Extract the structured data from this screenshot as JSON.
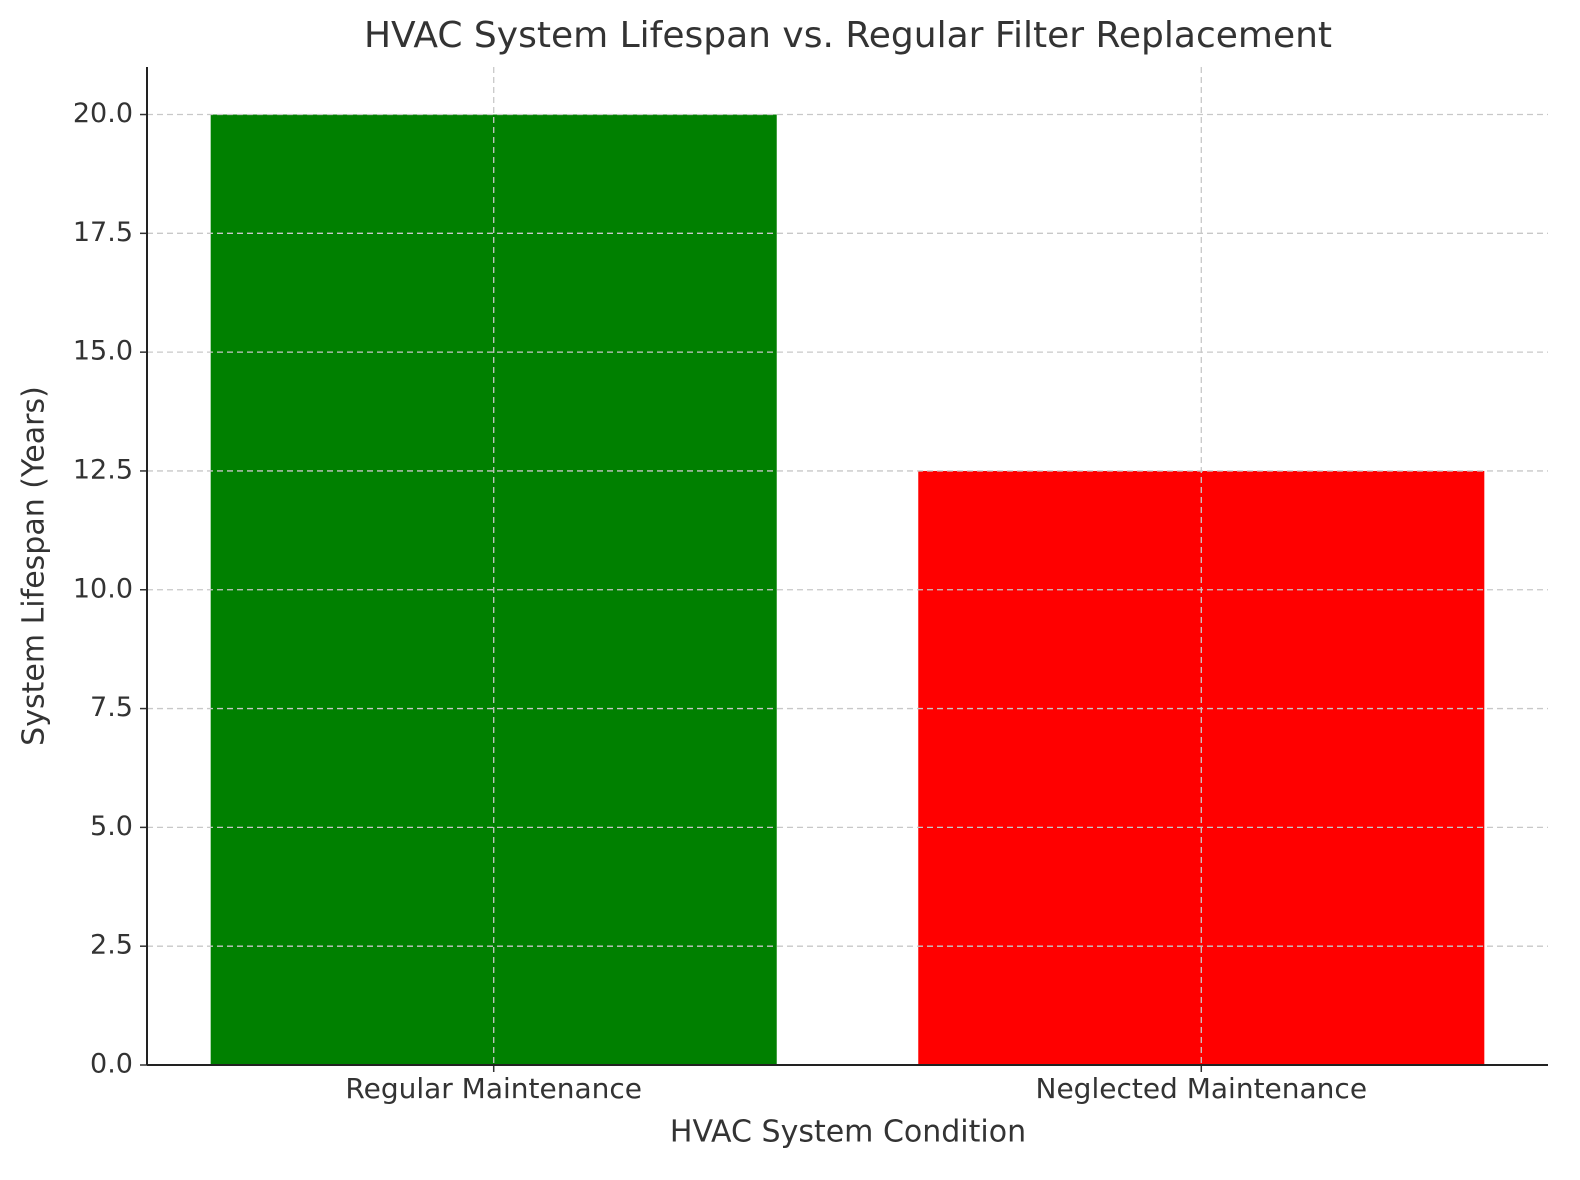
{
  "chart_data": {
    "type": "bar",
    "title": "HVAC System Lifespan vs. Regular Filter Replacement",
    "x_label": "HVAC System Condition",
    "y_label": "System Lifespan (Years)",
    "categories": [
      "Regular Maintenance",
      "Neglected Maintenance"
    ],
    "values": [
      20,
      12.5
    ],
    "colors": [
      "#008000",
      "#ff0000"
    ],
    "ylim": [
      0,
      21
    ],
    "yticks": [
      {
        "value": 0,
        "label": "0.0"
      },
      2.5,
      {
        "value": 5,
        "label": "5.0"
      },
      7.5,
      {
        "value": 10,
        "label": "10.0"
      },
      12.5,
      {
        "value": 15,
        "label": "15.0"
      },
      17.5,
      {
        "value": 20,
        "label": "20.0"
      }
    ],
    "grid": true
  }
}
